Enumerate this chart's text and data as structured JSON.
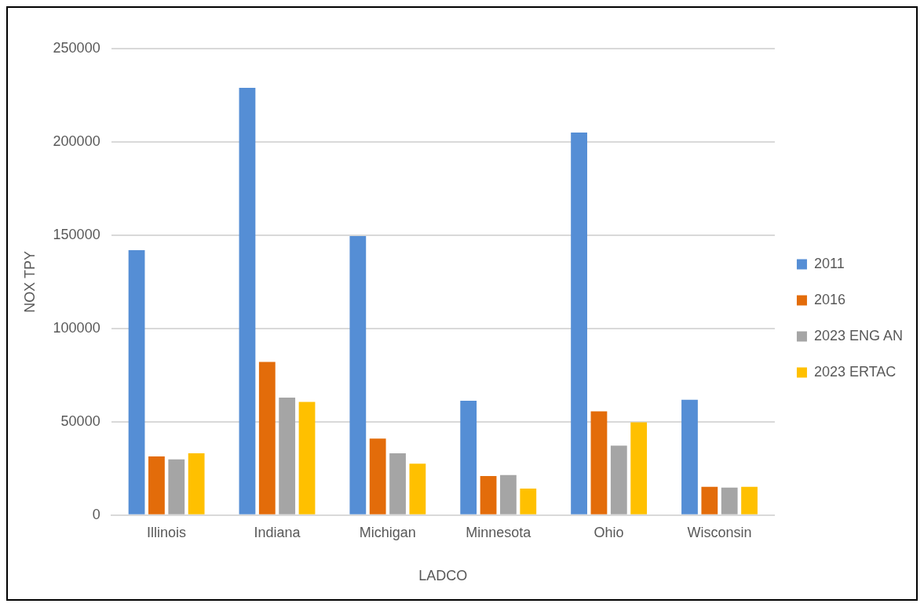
{
  "chart_data": {
    "type": "bar",
    "xlabel": "LADCO",
    "ylabel": "NOX TPY",
    "categories": [
      "Illinois",
      "Indiana",
      "Michigan",
      "Minnesota",
      "Ohio",
      "Wisconsin"
    ],
    "series": [
      {
        "name": "2011",
        "color": "#558ed5",
        "values": [
          142000,
          229000,
          149500,
          61300,
          205000,
          61800
        ]
      },
      {
        "name": "2016",
        "color": "#e36c0a",
        "values": [
          31400,
          82100,
          41000,
          20900,
          55600,
          15200
        ]
      },
      {
        "name": "2023 ENG AN",
        "color": "#a5a5a5",
        "values": [
          29900,
          63000,
          33100,
          21500,
          37200,
          14700
        ]
      },
      {
        "name": "2023 ERTAC",
        "color": "#ffc000",
        "values": [
          33100,
          60600,
          27500,
          14200,
          49700,
          15200
        ]
      }
    ],
    "ylim": [
      0,
      250000
    ],
    "yticks": [
      0,
      50000,
      100000,
      150000,
      200000,
      250000
    ],
    "grid": "y",
    "legend": "right"
  }
}
